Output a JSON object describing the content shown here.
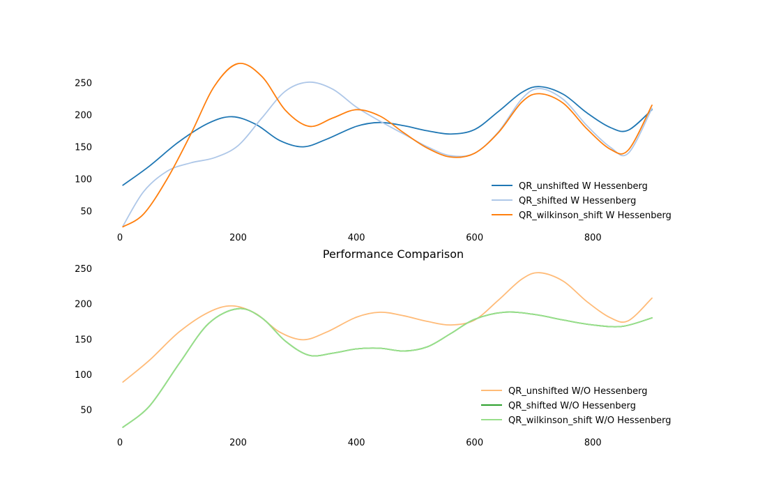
{
  "chart_data": [
    {
      "type": "line",
      "title": "",
      "xlabel": "",
      "ylabel": "",
      "xlim": [
        0,
        920
      ],
      "ylim": [
        20,
        290
      ],
      "xticks": [
        0,
        200,
        400,
        600,
        800
      ],
      "yticks": [
        50,
        100,
        150,
        200,
        250
      ],
      "grid": false,
      "legend_position": "lower-right",
      "series": [
        {
          "name": "QR_unshifted W Hessenberg",
          "color": "#1f77b4",
          "x": [
            5,
            50,
            100,
            150,
            190,
            230,
            270,
            310,
            350,
            400,
            440,
            480,
            520,
            560,
            600,
            640,
            680,
            710,
            750,
            790,
            830,
            860,
            900
          ],
          "y": [
            90,
            120,
            158,
            187,
            197,
            185,
            160,
            150,
            162,
            182,
            188,
            183,
            175,
            170,
            177,
            205,
            235,
            244,
            232,
            203,
            180,
            176,
            208
          ]
        },
        {
          "name": "QR_shifted W Hessenberg",
          "color": "#aec7e8",
          "x": [
            5,
            40,
            80,
            120,
            160,
            200,
            240,
            280,
            320,
            360,
            400,
            440,
            480,
            520,
            560,
            600,
            640,
            680,
            710,
            750,
            790,
            830,
            860,
            900
          ],
          "y": [
            26,
            80,
            112,
            125,
            133,
            152,
            195,
            237,
            251,
            240,
            212,
            190,
            170,
            150,
            136,
            140,
            173,
            225,
            241,
            224,
            183,
            149,
            140,
            210
          ]
        },
        {
          "name": "QR_wilkinson_shift W Hessenberg",
          "color": "#ff7f0e",
          "x": [
            5,
            40,
            80,
            120,
            160,
            200,
            240,
            280,
            320,
            360,
            400,
            440,
            480,
            520,
            560,
            600,
            640,
            680,
            710,
            750,
            790,
            830,
            860,
            900
          ],
          "y": [
            25,
            45,
            100,
            170,
            245,
            280,
            260,
            207,
            182,
            195,
            208,
            198,
            172,
            148,
            134,
            140,
            172,
            220,
            233,
            218,
            178,
            146,
            145,
            215
          ]
        }
      ]
    },
    {
      "type": "line",
      "title": "Performance Comparison",
      "xlabel": "",
      "ylabel": "",
      "xlim": [
        0,
        920
      ],
      "ylim": [
        15,
        260
      ],
      "xticks": [
        0,
        200,
        400,
        600,
        800
      ],
      "yticks": [
        50,
        100,
        150,
        200,
        250
      ],
      "grid": false,
      "legend_position": "lower-right",
      "series": [
        {
          "name": "QR_unshifted W/O Hessenberg",
          "color": "#ffbb78",
          "x": [
            5,
            50,
            100,
            150,
            190,
            230,
            270,
            310,
            350,
            400,
            440,
            480,
            520,
            560,
            600,
            640,
            680,
            710,
            750,
            790,
            830,
            860,
            900
          ],
          "y": [
            89,
            120,
            160,
            188,
            197,
            186,
            160,
            149,
            160,
            181,
            188,
            183,
            175,
            170,
            177,
            205,
            235,
            244,
            232,
            203,
            180,
            176,
            208
          ]
        },
        {
          "name": "QR_shifted W/O Hessenberg",
          "color": "#2ca02c",
          "x": [
            5,
            50,
            100,
            150,
            200,
            240,
            280,
            320,
            360,
            400,
            440,
            480,
            520,
            560,
            600,
            650,
            700,
            750,
            800,
            850,
            900
          ],
          "y": [
            25,
            55,
            115,
            172,
            193,
            180,
            147,
            127,
            130,
            136,
            137,
            133,
            139,
            158,
            178,
            188,
            185,
            177,
            170,
            168,
            180
          ]
        },
        {
          "name": "QR_wilkinson_shift W/O Hessenberg",
          "color": "#98df8a",
          "x": [
            5,
            50,
            100,
            150,
            200,
            240,
            280,
            320,
            360,
            400,
            440,
            480,
            520,
            560,
            600,
            650,
            700,
            750,
            800,
            850,
            900
          ],
          "y": [
            25,
            55,
            115,
            172,
            193,
            180,
            147,
            127,
            130,
            136,
            137,
            133,
            139,
            158,
            178,
            188,
            185,
            177,
            170,
            168,
            180
          ]
        }
      ]
    }
  ]
}
